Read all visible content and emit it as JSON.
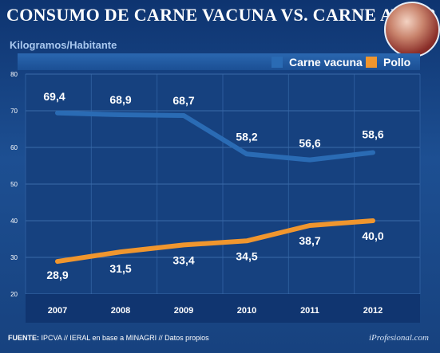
{
  "title": "CONSUMO DE CARNE VACUNA VS. CARNE AVIAR",
  "unit_label": "Kilogramos/Habitante",
  "footer": {
    "source_prefix": "FUENTE:",
    "source_text": "IPCVA // IERAL en base a MINAGRI // Datos propios",
    "credit": "iProfesional.com"
  },
  "colors": {
    "carne_vacuna": "#2a6bb4",
    "pollo": "#f0962e",
    "background": "#123a78"
  },
  "chart_data": {
    "type": "line",
    "categories": [
      "2007",
      "2008",
      "2009",
      "2010",
      "2011",
      "2012"
    ],
    "series": [
      {
        "name": "Carne vacuna",
        "values": [
          69.4,
          68.9,
          68.7,
          58.2,
          56.6,
          58.6
        ],
        "labels": [
          "69,4",
          "68,9",
          "68,7",
          "58,2",
          "56,6",
          "58,6"
        ]
      },
      {
        "name": "Pollo",
        "values": [
          28.9,
          31.5,
          33.4,
          34.5,
          38.7,
          40.0
        ],
        "labels": [
          "28,9",
          "31,5",
          "33,4",
          "34,5",
          "38,7",
          "40,0"
        ]
      }
    ],
    "ylabel": "Kilogramos/Habitante",
    "ylim": [
      20,
      80
    ],
    "yticks": [
      20,
      30,
      40,
      50,
      60,
      70,
      80
    ],
    "grid": true,
    "legend_position": "top-right"
  }
}
